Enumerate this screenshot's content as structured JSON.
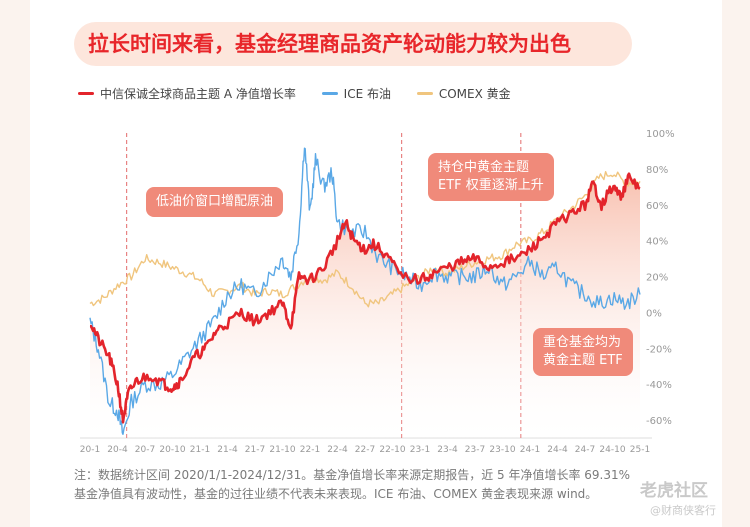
{
  "title": "拉长时间来看，基金经理商品资产轮动能力较为出色",
  "colors": {
    "fund": "#e3242b",
    "oil": "#5aa8e6",
    "gold": "#f0c57e",
    "area": "#f7b9a6",
    "callout": "#f08a7a",
    "vline": "#e36b6b"
  },
  "callouts": {
    "c1": "低油价窗口增配原油",
    "c2a": "持仓中黄金主题",
    "c2b": "ETF 权重逐渐上升",
    "c3a": "重仓基金均为",
    "c3b": "黄金主题 ETF"
  },
  "note": {
    "line1": "注：数据统计区间 2020/1/1-2024/12/31。基金净值增长率来源定期报告，近 5 年净值增长率 69.31%",
    "line2": "基金净值具有波动性，基金的过往业绩不代表未来表现。ICE 布油、COMEX 黄金表现来源 wind。"
  },
  "watermark": {
    "top": "老虎社区",
    "bottom": "@财商侠客行"
  },
  "chart_data": {
    "type": "line",
    "x_ticks": [
      "20-1",
      "20-4",
      "20-7",
      "20-10",
      "21-1",
      "21-4",
      "21-7",
      "21-10",
      "22-1",
      "22-4",
      "22-7",
      "22-10",
      "23-1",
      "23-4",
      "23-7",
      "23-10",
      "24-1",
      "24-4",
      "24-7",
      "24-10",
      "25-1"
    ],
    "y_ticks": [
      "100%",
      "80%",
      "60%",
      "40%",
      "20%",
      "0%",
      "-20%",
      "-40%",
      "-60%"
    ],
    "ylim": [
      -70,
      100
    ],
    "grid": false,
    "legend_position": "top-left",
    "vlines": [
      "20-5",
      "22-11",
      "23-12"
    ],
    "series": [
      {
        "name": "中信保诚全球商品主题 A 净值增长率",
        "key": "fund",
        "points": [
          [
            0,
            -5
          ],
          [
            0.3,
            -15
          ],
          [
            0.7,
            -25
          ],
          [
            1,
            -40
          ],
          [
            1.2,
            -60
          ],
          [
            1.4,
            -45
          ],
          [
            1.7,
            -38
          ],
          [
            2.2,
            -35
          ],
          [
            2.7,
            -40
          ],
          [
            3,
            -42
          ],
          [
            3.3,
            -38
          ],
          [
            3.8,
            -25
          ],
          [
            4.2,
            -20
          ],
          [
            4.6,
            -10
          ],
          [
            5,
            -6
          ],
          [
            5.5,
            0
          ],
          [
            6,
            -5
          ],
          [
            6.5,
            0
          ],
          [
            7,
            5
          ],
          [
            7.3,
            -8
          ],
          [
            7.6,
            20
          ],
          [
            8,
            18
          ],
          [
            8.5,
            25
          ],
          [
            9,
            40
          ],
          [
            9.3,
            50
          ],
          [
            9.6,
            40
          ],
          [
            10,
            35
          ],
          [
            10.3,
            38
          ],
          [
            10.8,
            32
          ],
          [
            11.3,
            20
          ],
          [
            12,
            18
          ],
          [
            12.5,
            22
          ],
          [
            13,
            25
          ],
          [
            13.5,
            28
          ],
          [
            14,
            30
          ],
          [
            14.5,
            25
          ],
          [
            15,
            28
          ],
          [
            15.5,
            30
          ],
          [
            16,
            35
          ],
          [
            16.5,
            42
          ],
          [
            17,
            50
          ],
          [
            17.5,
            55
          ],
          [
            18,
            60
          ],
          [
            18.3,
            72
          ],
          [
            18.6,
            60
          ],
          [
            19,
            70
          ],
          [
            19.3,
            65
          ],
          [
            19.6,
            75
          ],
          [
            20,
            69
          ]
        ]
      },
      {
        "name": "ICE 布油",
        "key": "oil",
        "points": [
          [
            0,
            -5
          ],
          [
            0.3,
            -20
          ],
          [
            0.7,
            -50
          ],
          [
            1,
            -55
          ],
          [
            1.2,
            -68
          ],
          [
            1.5,
            -50
          ],
          [
            2,
            -40
          ],
          [
            2.5,
            -40
          ],
          [
            3,
            -35
          ],
          [
            3.5,
            -25
          ],
          [
            4,
            -15
          ],
          [
            4.5,
            -5
          ],
          [
            5,
            10
          ],
          [
            5.5,
            15
          ],
          [
            6,
            10
          ],
          [
            6.5,
            20
          ],
          [
            7,
            30
          ],
          [
            7.3,
            20
          ],
          [
            7.6,
            45
          ],
          [
            7.8,
            95
          ],
          [
            8,
            55
          ],
          [
            8.2,
            85
          ],
          [
            8.5,
            70
          ],
          [
            8.8,
            78
          ],
          [
            9,
            50
          ],
          [
            9.5,
            45
          ],
          [
            10,
            45
          ],
          [
            10.5,
            30
          ],
          [
            11,
            25
          ],
          [
            11.5,
            20
          ],
          [
            12,
            15
          ],
          [
            12.5,
            22
          ],
          [
            13,
            20
          ],
          [
            13.5,
            20
          ],
          [
            14,
            20
          ],
          [
            14.5,
            25
          ],
          [
            15,
            15
          ],
          [
            15.5,
            20
          ],
          [
            16,
            28
          ],
          [
            16.5,
            20
          ],
          [
            17,
            25
          ],
          [
            17.5,
            15
          ],
          [
            18,
            10
          ],
          [
            18.5,
            5
          ],
          [
            19,
            8
          ],
          [
            19.5,
            5
          ],
          [
            20,
            10
          ]
        ]
      },
      {
        "name": "COMEX 黄金",
        "key": "gold",
        "points": [
          [
            0,
            5
          ],
          [
            0.5,
            8
          ],
          [
            1,
            15
          ],
          [
            1.5,
            20
          ],
          [
            2,
            30
          ],
          [
            2.5,
            28
          ],
          [
            3,
            25
          ],
          [
            3.5,
            22
          ],
          [
            4,
            18
          ],
          [
            4.5,
            10
          ],
          [
            5,
            12
          ],
          [
            5.5,
            15
          ],
          [
            6,
            10
          ],
          [
            6.5,
            12
          ],
          [
            7,
            10
          ],
          [
            7.5,
            15
          ],
          [
            8,
            20
          ],
          [
            8.5,
            18
          ],
          [
            9,
            22
          ],
          [
            9.5,
            15
          ],
          [
            10,
            5
          ],
          [
            10.5,
            5
          ],
          [
            11,
            10
          ],
          [
            11.5,
            15
          ],
          [
            12,
            20
          ],
          [
            12.5,
            25
          ],
          [
            13,
            22
          ],
          [
            13.5,
            25
          ],
          [
            14,
            28
          ],
          [
            14.5,
            30
          ],
          [
            15,
            32
          ],
          [
            15.5,
            38
          ],
          [
            16,
            40
          ],
          [
            16.5,
            45
          ],
          [
            17,
            52
          ],
          [
            17.5,
            58
          ],
          [
            18,
            65
          ],
          [
            18.5,
            75
          ],
          [
            19,
            78
          ],
          [
            19.5,
            72
          ],
          [
            20,
            73
          ]
        ]
      }
    ]
  }
}
